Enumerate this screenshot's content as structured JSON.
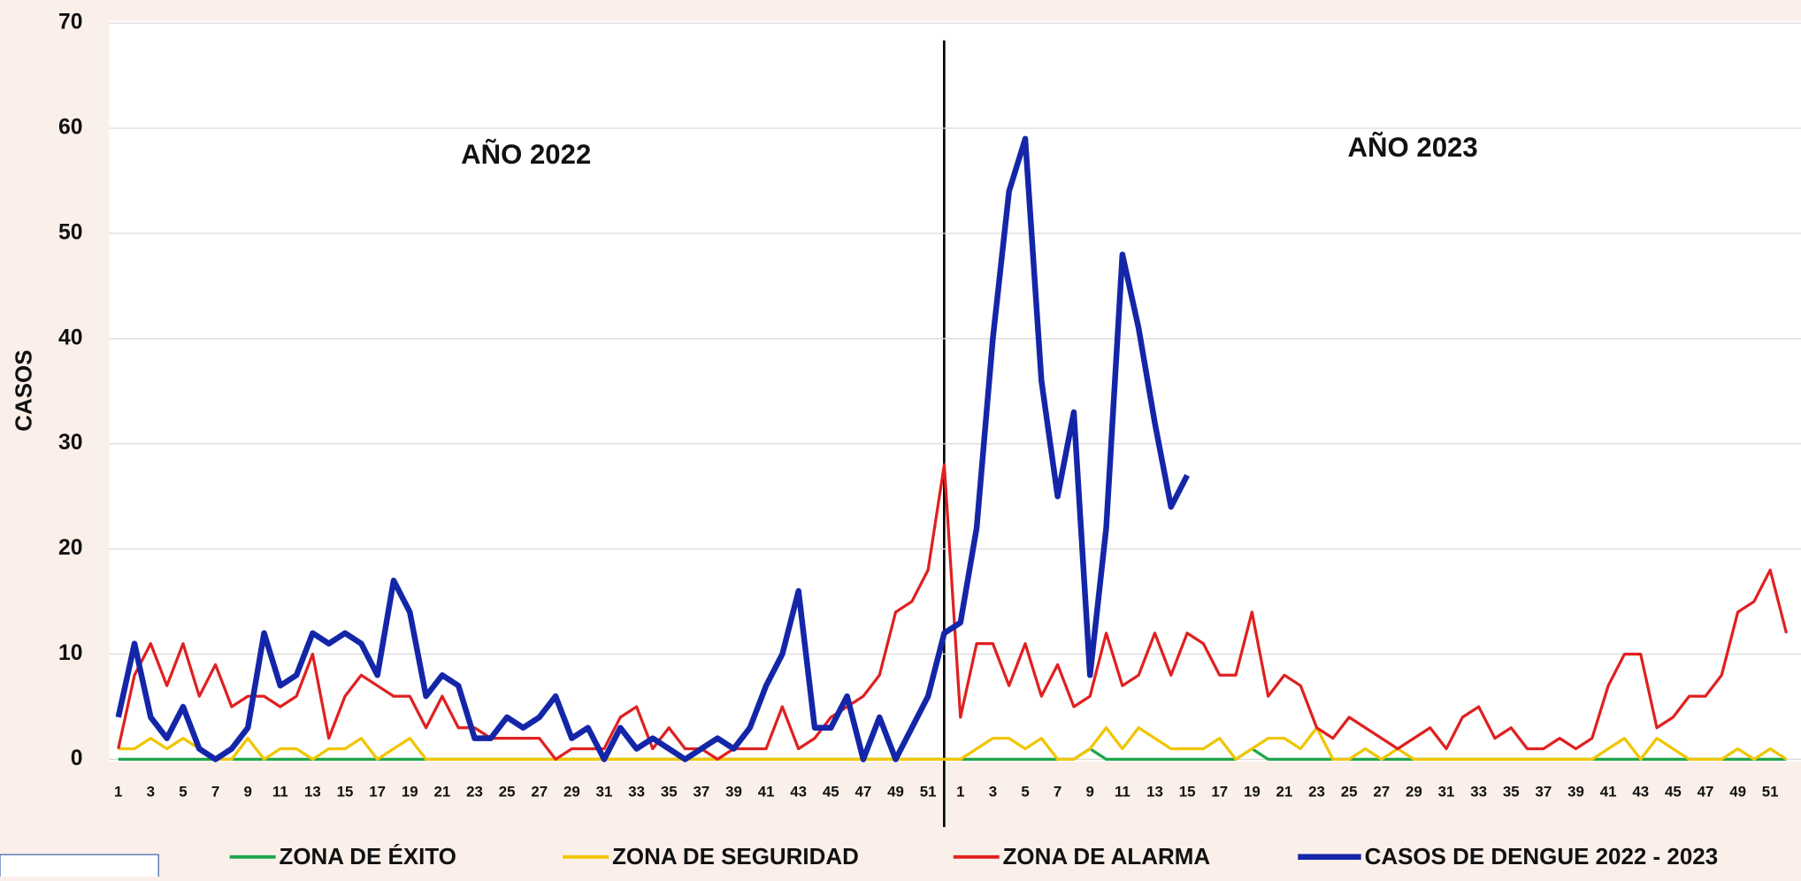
{
  "chart_data": {
    "type": "line",
    "y_label": "CASOS",
    "annotations": [
      "AÑO 2022",
      "AÑO 2023"
    ],
    "categories": [
      1,
      null,
      3,
      null,
      5,
      null,
      7,
      null,
      9,
      null,
      11,
      null,
      13,
      null,
      15,
      null,
      17,
      null,
      19,
      null,
      21,
      null,
      23,
      null,
      25,
      null,
      27,
      null,
      29,
      null,
      31,
      null,
      33,
      null,
      35,
      null,
      37,
      null,
      39,
      null,
      41,
      null,
      43,
      null,
      45,
      null,
      47,
      null,
      49,
      null,
      51,
      null,
      1,
      null,
      3,
      null,
      5,
      null,
      7,
      null,
      9,
      null,
      11,
      null,
      13,
      null,
      15,
      null,
      17,
      null,
      19,
      null,
      21,
      null,
      23,
      null,
      25,
      null,
      27,
      null,
      29,
      null,
      31,
      null,
      33,
      null,
      35,
      null,
      37,
      null,
      39,
      null,
      41,
      null,
      43,
      null,
      45,
      null,
      47,
      null,
      49,
      null,
      51,
      null
    ],
    "ylim": [
      0,
      70
    ],
    "yticks": [
      0,
      10,
      20,
      30,
      40,
      50,
      60,
      70
    ],
    "grid": true,
    "series": [
      {
        "name": "ZONA DE ÉXITO",
        "color": "#1ea64a",
        "values": [
          0,
          0,
          0,
          0,
          0,
          0,
          0,
          0,
          0,
          0,
          0,
          0,
          0,
          0,
          0,
          0,
          0,
          0,
          0,
          0,
          0,
          0,
          0,
          0,
          0,
          0,
          0,
          0,
          0,
          0,
          0,
          0,
          0,
          0,
          0,
          0,
          0,
          0,
          0,
          0,
          0,
          0,
          0,
          0,
          0,
          0,
          0,
          0,
          0,
          0,
          0,
          0,
          0,
          0,
          0,
          0,
          0,
          0,
          0,
          0,
          1,
          0,
          0,
          0,
          0,
          0,
          0,
          0,
          0,
          0,
          1,
          0,
          0,
          0,
          0,
          0,
          0,
          0,
          0,
          0,
          0,
          0,
          0,
          0,
          0,
          0,
          0,
          0,
          0,
          0,
          0,
          0,
          0,
          0,
          0,
          0,
          0,
          0,
          0,
          0,
          0,
          0,
          0,
          0
        ]
      },
      {
        "name": "ZONA DE SEGURIDAD",
        "color": "#f2c500",
        "values": [
          1,
          1,
          2,
          1,
          2,
          1,
          0,
          0,
          2,
          0,
          1,
          1,
          0,
          1,
          1,
          2,
          0,
          1,
          2,
          0,
          0,
          0,
          0,
          0,
          0,
          0,
          0,
          0,
          0,
          0,
          0,
          0,
          0,
          0,
          0,
          0,
          0,
          0,
          0,
          0,
          0,
          0,
          0,
          0,
          0,
          0,
          0,
          0,
          0,
          0,
          0,
          0,
          0,
          1,
          2,
          2,
          1,
          2,
          0,
          0,
          1,
          3,
          1,
          3,
          2,
          1,
          1,
          1,
          2,
          0,
          1,
          2,
          2,
          1,
          3,
          0,
          0,
          1,
          0,
          1,
          0,
          0,
          0,
          0,
          0,
          0,
          0,
          0,
          0,
          0,
          0,
          0,
          1,
          2,
          0,
          2,
          1,
          0,
          0,
          0,
          1,
          0,
          1,
          0
        ]
      },
      {
        "name": "ZONA DE ALARMA",
        "color": "#e02020",
        "values": [
          1,
          8,
          11,
          7,
          11,
          6,
          9,
          5,
          6,
          6,
          5,
          6,
          10,
          2,
          6,
          8,
          7,
          6,
          6,
          3,
          6,
          3,
          3,
          2,
          2,
          2,
          2,
          0,
          1,
          1,
          1,
          4,
          5,
          1,
          3,
          1,
          1,
          0,
          1,
          1,
          1,
          5,
          1,
          2,
          4,
          5,
          6,
          8,
          14,
          15,
          18,
          28,
          4,
          11,
          11,
          7,
          11,
          6,
          9,
          5,
          6,
          12,
          7,
          8,
          12,
          8,
          12,
          11,
          8,
          8,
          14,
          6,
          8,
          7,
          3,
          2,
          4,
          3,
          2,
          1,
          2,
          3,
          1,
          4,
          5,
          2,
          3,
          1,
          1,
          2,
          1,
          2,
          7,
          10,
          10,
          3,
          4,
          6,
          6,
          8,
          14,
          15,
          18,
          12
        ]
      },
      {
        "name": "CASOS DE DENGUE 2022 - 2023",
        "color": "#1426a8",
        "values": [
          4,
          11,
          4,
          2,
          5,
          1,
          0,
          1,
          3,
          12,
          7,
          8,
          12,
          11,
          12,
          11,
          8,
          17,
          14,
          6,
          8,
          7,
          2,
          2,
          4,
          3,
          4,
          6,
          2,
          3,
          0,
          3,
          1,
          2,
          1,
          0,
          1,
          2,
          1,
          3,
          7,
          10,
          16,
          3,
          3,
          6,
          0,
          4,
          0,
          3,
          6,
          12,
          13,
          22,
          40,
          54,
          59,
          36,
          25,
          33,
          8,
          22,
          48,
          41,
          32,
          24,
          27,
          null,
          null,
          null,
          null,
          null,
          null,
          null,
          null,
          null,
          null,
          null,
          null,
          null,
          null,
          null,
          null,
          null,
          null,
          null,
          null,
          null,
          null,
          null,
          null,
          null,
          null,
          null,
          null,
          null,
          null,
          null,
          null,
          null,
          null,
          null,
          null,
          null
        ]
      }
    ]
  }
}
